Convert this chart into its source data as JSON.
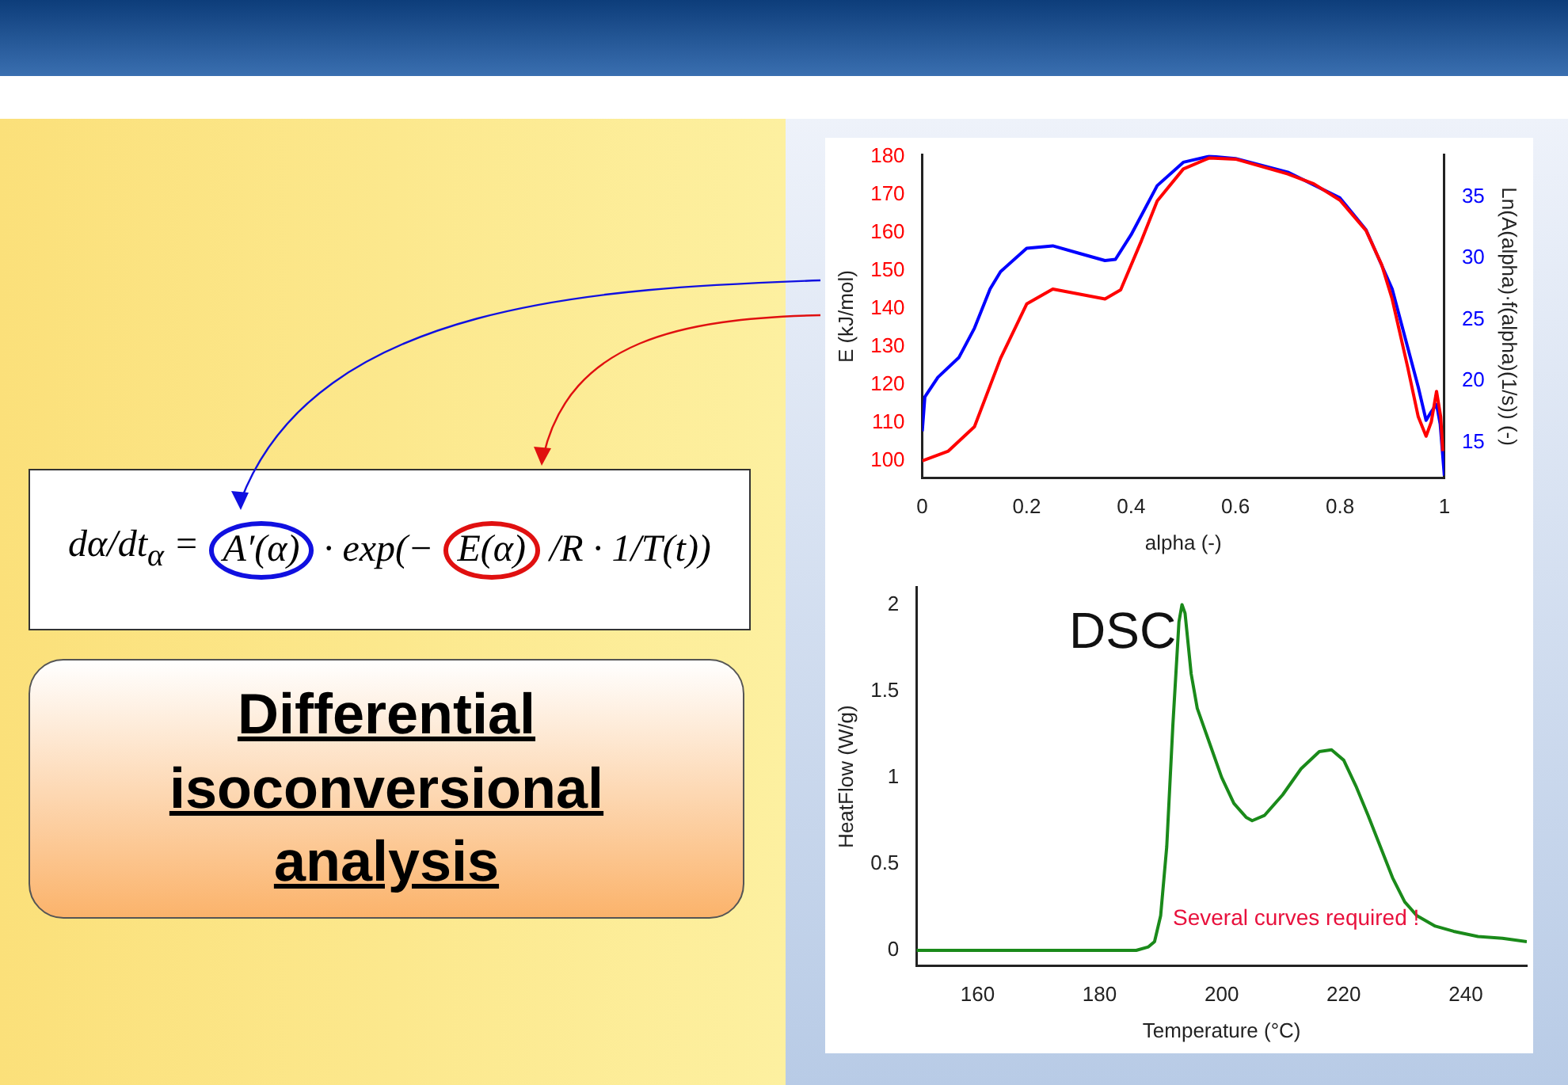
{
  "chart_data": [
    {
      "type": "other",
      "title": "Differential isoconversional analysis",
      "annotations": [
        "dα/dt$_{α}$ =",
        "A′(α)",
        "· exp(−",
        "E(α)",
        "/R · 1/T(t))"
      ]
    },
    {
      "type": "line",
      "xlabel": "alpha (-)",
      "ylabel": "E (kJ/mol)",
      "y2label": "Ln(A(alpha)·f(alpha)(1/s)) (-)",
      "xlim": [
        0,
        1
      ],
      "xticks": [
        0,
        0.2,
        0.4,
        0.6,
        0.8,
        1
      ],
      "ylim": [
        95.5,
        180.5
      ],
      "yticks": [
        100,
        110,
        120,
        130,
        140,
        150,
        160,
        170,
        180
      ],
      "y2lim": [
        12.1,
        38.4
      ],
      "y2ticks": [
        15,
        20,
        25,
        30,
        35
      ],
      "series": [
        {
          "color": "#ff0000",
          "x": [
            0,
            0.05,
            0.1,
            0.15,
            0.2,
            0.25,
            0.3,
            0.35,
            0.38,
            0.42,
            0.45,
            0.5,
            0.55,
            0.6,
            0.7,
            0.75,
            0.8,
            0.85,
            0.88,
            0.9,
            0.93,
            0.95,
            0.965,
            0.975,
            0.985,
            0.993,
            0.997
          ],
          "values": [
            100,
            102.6,
            109,
            127,
            141.3,
            145.2,
            143.9,
            142.6,
            145,
            158,
            168.4,
            176.8,
            179.7,
            179.4,
            175.5,
            172.9,
            168.6,
            160.6,
            151.6,
            142.6,
            124.5,
            111.6,
            106.5,
            110.3,
            118.3,
            111.6,
            102.6
          ]
        },
        {
          "color": "#0000ff",
          "axis": "y2",
          "x": [
            0,
            0.005,
            0.03,
            0.07,
            0.1,
            0.13,
            0.15,
            0.2,
            0.25,
            0.3,
            0.35,
            0.37,
            0.4,
            0.45,
            0.5,
            0.55,
            0.6,
            0.7,
            0.8,
            0.85,
            0.9,
            0.93,
            0.95,
            0.965,
            0.975,
            0.985,
            0.992,
            1
          ],
          "values": [
            15.9,
            18.7,
            20.3,
            21.9,
            24.3,
            27.5,
            28.9,
            30.8,
            31,
            30.4,
            29.8,
            29.9,
            31.9,
            35.9,
            37.8,
            38.3,
            38.1,
            37,
            34.9,
            32.3,
            27.5,
            22.7,
            19.5,
            16.8,
            17.5,
            18.1,
            16.5,
            12.3
          ]
        }
      ]
    },
    {
      "type": "line",
      "xlabel": "Temperature (°C)",
      "ylabel": "HeatFlow (W/g)",
      "xlim": [
        150,
        250
      ],
      "xticks": [
        160,
        180,
        200,
        220,
        240
      ],
      "ylim": [
        -0.09,
        2.1
      ],
      "yticks": [
        0,
        0.5,
        1,
        1.5,
        2
      ],
      "annotations": [
        "DSC",
        "Several curves required !"
      ],
      "series": [
        {
          "color": "#1a8a1a",
          "x": [
            150,
            186,
            188,
            189,
            190,
            191,
            192,
            193,
            193.5,
            194,
            195,
            196,
            198,
            200,
            202,
            204,
            205,
            207,
            210,
            213,
            216,
            218,
            220,
            222,
            224,
            226,
            228,
            230,
            232,
            235,
            238,
            242,
            246,
            250
          ],
          "values": [
            0,
            0,
            0.02,
            0.05,
            0.2,
            0.6,
            1.3,
            1.9,
            2,
            1.95,
            1.6,
            1.4,
            1.2,
            1,
            0.85,
            0.77,
            0.75,
            0.78,
            0.9,
            1.05,
            1.15,
            1.16,
            1.1,
            0.95,
            0.78,
            0.6,
            0.42,
            0.28,
            0.2,
            0.14,
            0.11,
            0.08,
            0.07,
            0.05
          ]
        }
      ]
    }
  ]
}
